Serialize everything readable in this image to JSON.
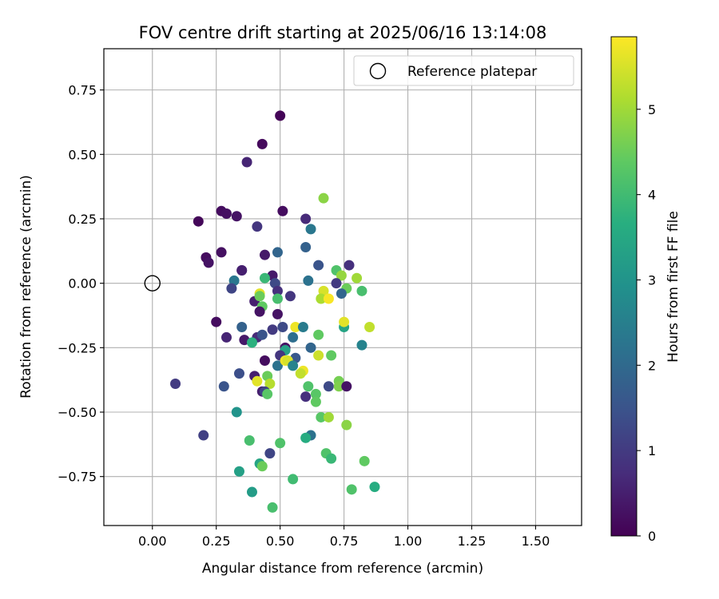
{
  "chart_data": {
    "type": "scatter",
    "title": "FOV centre drift starting at 2025/06/16 13:14:08",
    "xlabel": "Angular distance from reference (arcmin)",
    "ylabel": "Rotation from reference (arcmin)",
    "xlim": [
      -0.19,
      1.68
    ],
    "ylim": [
      -0.94,
      0.91
    ],
    "xticks": [
      0.0,
      0.25,
      0.5,
      0.75,
      1.0,
      1.25,
      1.5
    ],
    "xtick_labels": [
      "0.00",
      "0.25",
      "0.50",
      "0.75",
      "1.00",
      "1.25",
      "1.50"
    ],
    "yticks": [
      -0.75,
      -0.5,
      -0.25,
      0.0,
      0.25,
      0.5,
      0.75
    ],
    "ytick_labels": [
      "−0.75",
      "−0.50",
      "−0.25",
      "0.00",
      "0.25",
      "0.50",
      "0.75"
    ],
    "grid": true,
    "legend": {
      "position": "top-right",
      "entries": [
        "Reference platepar"
      ]
    },
    "reference_point": {
      "label": "Reference platepar",
      "x": 0.0,
      "y": 0.0,
      "marker": "open-circle"
    },
    "colorbar": {
      "label": "Hours from first FF file",
      "colormap": "viridis",
      "range": [
        0,
        5.85
      ],
      "ticks": [
        0,
        1,
        2,
        3,
        4,
        5
      ],
      "tick_labels": [
        "0",
        "1",
        "2",
        "3",
        "4",
        "5"
      ]
    },
    "series": [
      {
        "values_legend": "x (arcmin), y (arcmin), hours",
        "points": [
          [
            0.5,
            0.65,
            0.05
          ],
          [
            0.43,
            0.54,
            0.15
          ],
          [
            0.37,
            0.47,
            0.6
          ],
          [
            0.18,
            0.24,
            0.1
          ],
          [
            0.27,
            0.28,
            0.2
          ],
          [
            0.29,
            0.27,
            0.25
          ],
          [
            0.33,
            0.26,
            0.3
          ],
          [
            0.51,
            0.28,
            0.2
          ],
          [
            0.41,
            0.22,
            0.9
          ],
          [
            0.6,
            0.25,
            0.7
          ],
          [
            0.62,
            0.21,
            2.3
          ],
          [
            0.6,
            0.14,
            1.8
          ],
          [
            0.21,
            0.1,
            0.2
          ],
          [
            0.22,
            0.08,
            0.3
          ],
          [
            0.27,
            0.12,
            0.25
          ],
          [
            0.44,
            0.11,
            0.4
          ],
          [
            0.49,
            0.12,
            1.9
          ],
          [
            0.65,
            0.07,
            1.5
          ],
          [
            0.77,
            0.07,
            0.8
          ],
          [
            0.35,
            0.05,
            0.9
          ],
          [
            0.35,
            0.05,
            0.5
          ],
          [
            0.32,
            0.01,
            2.3
          ],
          [
            0.31,
            -0.02,
            1.2
          ],
          [
            0.47,
            0.03,
            0.4
          ],
          [
            0.44,
            0.02,
            3.9
          ],
          [
            0.48,
            0.0,
            1.3
          ],
          [
            0.61,
            0.01,
            2.2
          ],
          [
            0.72,
            0.05,
            4.2
          ],
          [
            0.74,
            0.03,
            4.9
          ],
          [
            0.72,
            0.0,
            1.0
          ],
          [
            0.8,
            0.02,
            5.0
          ],
          [
            0.82,
            -0.03,
            4.1
          ],
          [
            0.76,
            -0.02,
            4.5
          ],
          [
            0.74,
            -0.04,
            1.9
          ],
          [
            0.67,
            -0.03,
            5.5
          ],
          [
            0.66,
            -0.06,
            5.1
          ],
          [
            0.69,
            -0.06,
            5.8
          ],
          [
            0.42,
            -0.04,
            5.6
          ],
          [
            0.4,
            -0.07,
            0.5
          ],
          [
            0.42,
            -0.05,
            4.5
          ],
          [
            0.43,
            -0.09,
            4.4
          ],
          [
            0.49,
            -0.03,
            0.8
          ],
          [
            0.49,
            -0.06,
            4.1
          ],
          [
            0.54,
            -0.05,
            0.9
          ],
          [
            0.42,
            -0.11,
            0.3
          ],
          [
            0.49,
            -0.12,
            0.3
          ],
          [
            0.25,
            -0.15,
            0.2
          ],
          [
            0.35,
            -0.17,
            1.8
          ],
          [
            0.51,
            -0.17,
            1.3
          ],
          [
            0.56,
            -0.17,
            5.7
          ],
          [
            0.59,
            -0.17,
            2.4
          ],
          [
            0.75,
            -0.17,
            3.4
          ],
          [
            0.75,
            -0.15,
            5.6
          ],
          [
            0.85,
            -0.17,
            5.3
          ],
          [
            0.29,
            -0.21,
            0.6
          ],
          [
            0.36,
            -0.22,
            0.4
          ],
          [
            0.41,
            -0.21,
            0.7
          ],
          [
            0.43,
            -0.2,
            1.5
          ],
          [
            0.47,
            -0.18,
            1.0
          ],
          [
            0.55,
            -0.21,
            2.1
          ],
          [
            0.65,
            -0.2,
            4.4
          ],
          [
            0.39,
            -0.23,
            3.7
          ],
          [
            0.52,
            -0.25,
            0.3
          ],
          [
            0.52,
            -0.26,
            3.3
          ],
          [
            0.62,
            -0.25,
            1.9
          ],
          [
            0.5,
            -0.28,
            0.9
          ],
          [
            0.56,
            -0.29,
            1.6
          ],
          [
            0.65,
            -0.28,
            5.4
          ],
          [
            0.7,
            -0.28,
            4.4
          ],
          [
            0.82,
            -0.24,
            2.6
          ],
          [
            0.44,
            -0.3,
            0.2
          ],
          [
            0.49,
            -0.32,
            2.2
          ],
          [
            0.52,
            -0.3,
            5.7
          ],
          [
            0.53,
            -0.3,
            5.5
          ],
          [
            0.55,
            -0.32,
            2.6
          ],
          [
            0.59,
            -0.34,
            5.7
          ],
          [
            0.58,
            -0.35,
            5.3
          ],
          [
            0.34,
            -0.35,
            1.4
          ],
          [
            0.4,
            -0.36,
            0.5
          ],
          [
            0.45,
            -0.36,
            4.5
          ],
          [
            0.41,
            -0.38,
            5.6
          ],
          [
            0.46,
            -0.39,
            5.2
          ],
          [
            0.09,
            -0.39,
            1.0
          ],
          [
            0.28,
            -0.4,
            1.5
          ],
          [
            0.43,
            -0.42,
            0.5
          ],
          [
            0.44,
            -0.42,
            1.2
          ],
          [
            0.45,
            -0.43,
            4.3
          ],
          [
            0.61,
            -0.4,
            4.2
          ],
          [
            0.69,
            -0.4,
            1.3
          ],
          [
            0.73,
            -0.38,
            4.6
          ],
          [
            0.73,
            -0.4,
            4.7
          ],
          [
            0.76,
            -0.4,
            0.3
          ],
          [
            0.6,
            -0.44,
            0.8
          ],
          [
            0.64,
            -0.43,
            4.3
          ],
          [
            0.64,
            -0.46,
            4.4
          ],
          [
            0.33,
            -0.5,
            3.0
          ],
          [
            0.66,
            -0.52,
            4.3
          ],
          [
            0.69,
            -0.52,
            5.0
          ],
          [
            0.76,
            -0.55,
            4.8
          ],
          [
            0.2,
            -0.59,
            1.1
          ],
          [
            0.62,
            -0.59,
            2.2
          ],
          [
            0.6,
            -0.6,
            3.6
          ],
          [
            0.38,
            -0.61,
            4.1
          ],
          [
            0.5,
            -0.62,
            4.2
          ],
          [
            0.46,
            -0.66,
            1.2
          ],
          [
            0.68,
            -0.66,
            4.2
          ],
          [
            0.7,
            -0.68,
            3.9
          ],
          [
            0.42,
            -0.7,
            3.4
          ],
          [
            0.43,
            -0.71,
            4.5
          ],
          [
            0.83,
            -0.69,
            4.4
          ],
          [
            0.34,
            -0.73,
            3.3
          ],
          [
            0.55,
            -0.76,
            4.0
          ],
          [
            0.39,
            -0.81,
            3.2
          ],
          [
            0.78,
            -0.8,
            4.2
          ],
          [
            0.87,
            -0.79,
            3.6
          ],
          [
            0.47,
            -0.87,
            4.1
          ],
          [
            0.67,
            0.33,
            4.8
          ]
        ]
      }
    ]
  }
}
